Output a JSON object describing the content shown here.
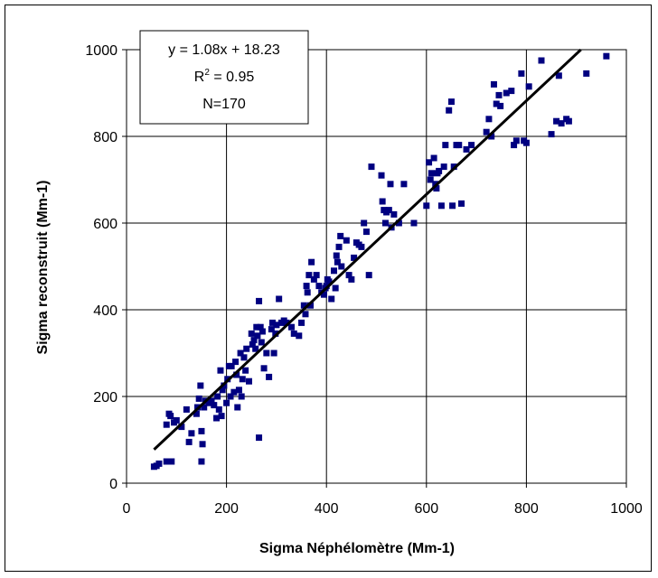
{
  "chart_data": {
    "type": "scatter",
    "title": "",
    "xlabel": "Sigma Néphélomètre (Mm-1)",
    "ylabel": "Sigma reconstruit (Mm-1)",
    "xlim": [
      0,
      1000
    ],
    "ylim": [
      0,
      1000
    ],
    "xticks": [
      "0",
      "200",
      "400",
      "600",
      "800",
      "1000"
    ],
    "yticks": [
      "0",
      "200",
      "400",
      "600",
      "800",
      "1000"
    ],
    "grid": true,
    "marker_color": "#000080",
    "trendline": {
      "slope": 1.08,
      "intercept": 18.23,
      "color": "#000000"
    },
    "annotation": {
      "equation": "y = 1.08x + 18.23",
      "r2_prefix": "R",
      "r2_sup": "2",
      "r2_suffix": " = 0.95",
      "n": "N=170"
    },
    "points": [
      [
        55,
        38
      ],
      [
        60,
        40
      ],
      [
        65,
        45
      ],
      [
        80,
        50
      ],
      [
        85,
        50
      ],
      [
        90,
        50
      ],
      [
        150,
        50
      ],
      [
        265,
        105
      ],
      [
        80,
        135
      ],
      [
        85,
        160
      ],
      [
        88,
        155
      ],
      [
        95,
        140
      ],
      [
        100,
        145
      ],
      [
        110,
        130
      ],
      [
        120,
        170
      ],
      [
        125,
        95
      ],
      [
        130,
        115
      ],
      [
        140,
        160
      ],
      [
        142,
        175
      ],
      [
        145,
        195
      ],
      [
        148,
        225
      ],
      [
        150,
        120
      ],
      [
        152,
        90
      ],
      [
        155,
        175
      ],
      [
        158,
        190
      ],
      [
        165,
        185
      ],
      [
        170,
        190
      ],
      [
        175,
        180
      ],
      [
        180,
        150
      ],
      [
        182,
        200
      ],
      [
        185,
        170
      ],
      [
        188,
        260
      ],
      [
        190,
        155
      ],
      [
        192,
        215
      ],
      [
        195,
        225
      ],
      [
        200,
        185
      ],
      [
        202,
        240
      ],
      [
        205,
        270
      ],
      [
        208,
        200
      ],
      [
        210,
        270
      ],
      [
        215,
        210
      ],
      [
        218,
        280
      ],
      [
        220,
        250
      ],
      [
        222,
        175
      ],
      [
        225,
        215
      ],
      [
        228,
        300
      ],
      [
        230,
        200
      ],
      [
        232,
        240
      ],
      [
        235,
        290
      ],
      [
        238,
        260
      ],
      [
        240,
        310
      ],
      [
        245,
        235
      ],
      [
        250,
        345
      ],
      [
        252,
        320
      ],
      [
        255,
        330
      ],
      [
        258,
        310
      ],
      [
        260,
        360
      ],
      [
        262,
        340
      ],
      [
        265,
        420
      ],
      [
        268,
        360
      ],
      [
        270,
        325
      ],
      [
        272,
        350
      ],
      [
        275,
        265
      ],
      [
        280,
        300
      ],
      [
        285,
        245
      ],
      [
        290,
        355
      ],
      [
        292,
        370
      ],
      [
        295,
        300
      ],
      [
        298,
        345
      ],
      [
        300,
        365
      ],
      [
        305,
        425
      ],
      [
        310,
        370
      ],
      [
        315,
        375
      ],
      [
        320,
        370
      ],
      [
        330,
        360
      ],
      [
        335,
        345
      ],
      [
        345,
        340
      ],
      [
        350,
        370
      ],
      [
        355,
        410
      ],
      [
        358,
        390
      ],
      [
        360,
        455
      ],
      [
        362,
        440
      ],
      [
        365,
        480
      ],
      [
        368,
        410
      ],
      [
        370,
        510
      ],
      [
        375,
        470
      ],
      [
        380,
        480
      ],
      [
        385,
        455
      ],
      [
        390,
        440
      ],
      [
        395,
        435
      ],
      [
        398,
        450
      ],
      [
        400,
        455
      ],
      [
        402,
        470
      ],
      [
        405,
        465
      ],
      [
        410,
        425
      ],
      [
        415,
        490
      ],
      [
        418,
        450
      ],
      [
        420,
        525
      ],
      [
        422,
        510
      ],
      [
        425,
        545
      ],
      [
        428,
        570
      ],
      [
        430,
        500
      ],
      [
        440,
        560
      ],
      [
        445,
        480
      ],
      [
        450,
        470
      ],
      [
        455,
        520
      ],
      [
        460,
        555
      ],
      [
        465,
        550
      ],
      [
        470,
        545
      ],
      [
        475,
        600
      ],
      [
        480,
        580
      ],
      [
        485,
        480
      ],
      [
        490,
        730
      ],
      [
        510,
        710
      ],
      [
        512,
        650
      ],
      [
        515,
        630
      ],
      [
        518,
        600
      ],
      [
        520,
        625
      ],
      [
        525,
        630
      ],
      [
        528,
        690
      ],
      [
        530,
        590
      ],
      [
        535,
        620
      ],
      [
        545,
        600
      ],
      [
        555,
        690
      ],
      [
        575,
        600
      ],
      [
        600,
        640
      ],
      [
        605,
        740
      ],
      [
        608,
        700
      ],
      [
        610,
        715
      ],
      [
        615,
        750
      ],
      [
        618,
        690
      ],
      [
        620,
        680
      ],
      [
        622,
        715
      ],
      [
        625,
        720
      ],
      [
        630,
        640
      ],
      [
        635,
        730
      ],
      [
        638,
        780
      ],
      [
        645,
        860
      ],
      [
        650,
        880
      ],
      [
        652,
        640
      ],
      [
        655,
        730
      ],
      [
        660,
        780
      ],
      [
        665,
        780
      ],
      [
        670,
        645
      ],
      [
        680,
        770
      ],
      [
        690,
        780
      ],
      [
        720,
        810
      ],
      [
        725,
        840
      ],
      [
        730,
        800
      ],
      [
        735,
        920
      ],
      [
        740,
        875
      ],
      [
        745,
        895
      ],
      [
        748,
        870
      ],
      [
        760,
        900
      ],
      [
        770,
        905
      ],
      [
        775,
        780
      ],
      [
        780,
        790
      ],
      [
        790,
        945
      ],
      [
        795,
        790
      ],
      [
        800,
        785
      ],
      [
        805,
        915
      ],
      [
        830,
        975
      ],
      [
        850,
        805
      ],
      [
        860,
        835
      ],
      [
        865,
        940
      ],
      [
        870,
        830
      ],
      [
        880,
        840
      ],
      [
        885,
        835
      ],
      [
        920,
        945
      ],
      [
        960,
        985
      ]
    ]
  }
}
